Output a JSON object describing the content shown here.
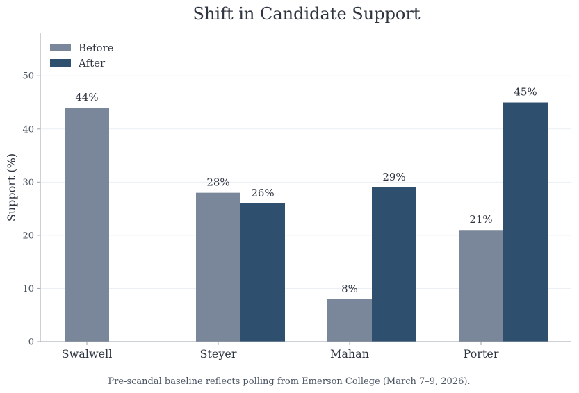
{
  "chart_data": {
    "type": "bar",
    "title": "Shift in Candidate Support",
    "ylabel": "Support (%)",
    "xlabel": "",
    "categories": [
      "Swalwell",
      "Steyer",
      "Mahan",
      "Porter"
    ],
    "series": [
      {
        "name": "Before",
        "values": [
          44,
          28,
          8,
          21
        ],
        "labels": [
          "44%",
          "28%",
          "8%",
          "21%"
        ],
        "color": "#7a8699"
      },
      {
        "name": "After",
        "values": [
          null,
          26,
          29,
          45
        ],
        "labels": [
          "",
          "26%",
          "29%",
          "45%"
        ],
        "color": "#2e4f6e"
      }
    ],
    "ylim": [
      0,
      58
    ],
    "yticks": [
      0,
      10,
      20,
      30,
      40,
      50
    ],
    "grid": true,
    "legend": "top-left",
    "footnote": "Pre-scandal baseline reflects polling from Emerson College (March 7–9, 2026)."
  }
}
